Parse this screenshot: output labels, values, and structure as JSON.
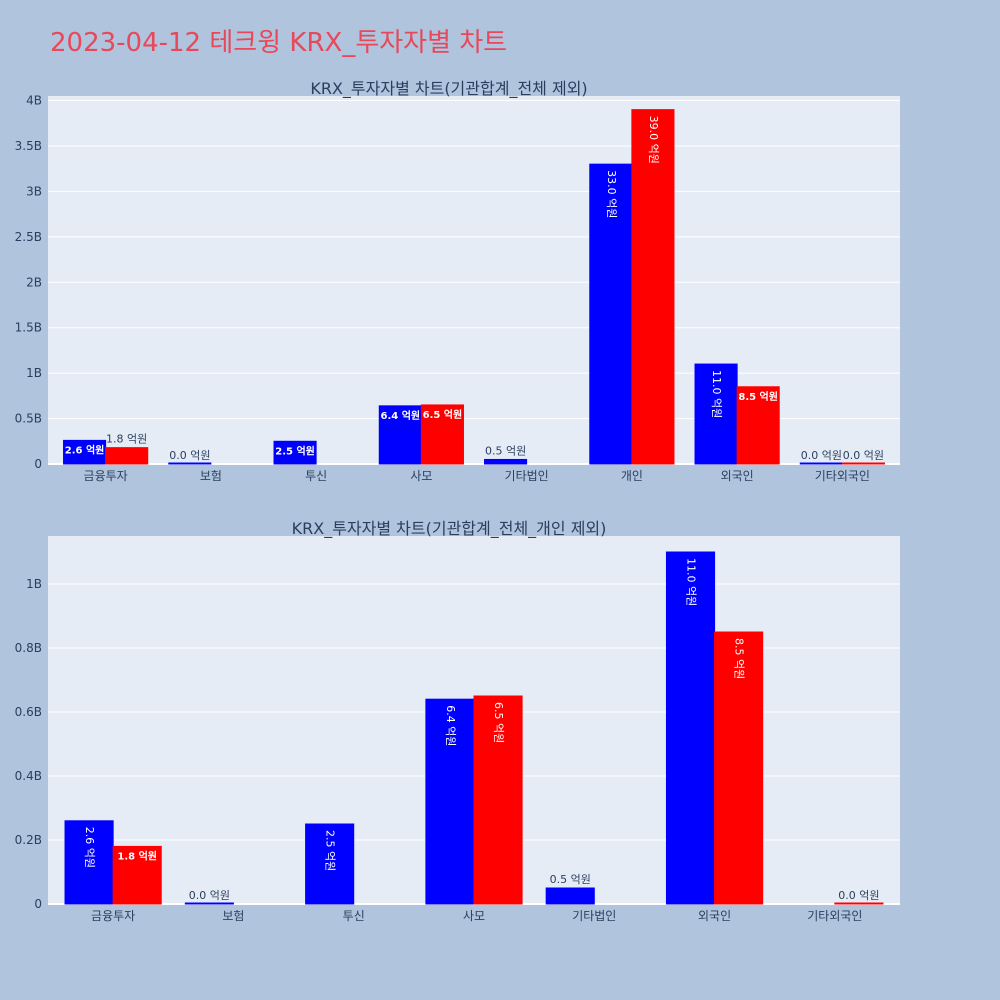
{
  "page": {
    "title": "2023-04-12 테크윙 KRX_투자자별 차트"
  },
  "colors": {
    "buy": "#0000ff",
    "sell": "#ff0000",
    "plot_bg": "#e5ecf6",
    "paper_bg": "#b0c4de",
    "title": "#e8485a"
  },
  "chart_data": [
    {
      "type": "bar",
      "title": "KRX_투자자별 차트(기관합계_전체 제외)",
      "categories": [
        "금융투자",
        "보험",
        "투신",
        "사모",
        "기타법인",
        "개인",
        "외국인",
        "기타외국인"
      ],
      "series": [
        {
          "values": [
            260000000,
            0,
            250000000,
            640000000,
            50000000,
            3300000000,
            1100000000,
            0
          ],
          "labels": [
            "2.6 억원",
            "0.0 억원",
            "2.5 억원",
            "6.4 억원",
            "0.5 억원",
            "33.0 억원",
            "11.0 억원",
            "0.0 억원"
          ]
        },
        {
          "values": [
            180000000,
            null,
            null,
            650000000,
            null,
            3900000000,
            850000000,
            0
          ],
          "labels": [
            "1.8 억원",
            "",
            "",
            "6.5 억원",
            "",
            "39.0 억원",
            "8.5 억원",
            "0.0 억원"
          ]
        }
      ],
      "ylim": [
        0,
        4050000000
      ],
      "yticks": [
        0,
        500000000,
        1000000000,
        1500000000,
        2000000000,
        2500000000,
        3000000000,
        3500000000,
        4000000000
      ],
      "ytick_labels": [
        "0",
        "0.5B",
        "1B",
        "1.5B",
        "2B",
        "2.5B",
        "3B",
        "3.5B",
        "4B"
      ],
      "grid": true
    },
    {
      "type": "bar",
      "title": "KRX_투자자별 차트(기관합계_전체_개인 제외)",
      "categories": [
        "금융투자",
        "보험",
        "투신",
        "사모",
        "기타법인",
        "외국인",
        "기타외국인"
      ],
      "series": [
        {
          "values": [
            260000000,
            0,
            250000000,
            640000000,
            50000000,
            1100000000,
            null
          ],
          "labels": [
            "2.6 억원",
            "0.0 억원",
            "2.5 억원",
            "6.4 억원",
            "0.5 억원",
            "11.0 억원",
            ""
          ]
        },
        {
          "values": [
            180000000,
            null,
            null,
            650000000,
            null,
            850000000,
            0
          ],
          "labels": [
            "1.8 억원",
            "",
            "",
            "6.5 억원",
            "",
            "8.5 억원",
            "0.0 억원"
          ]
        }
      ],
      "ylim": [
        0,
        1150000000
      ],
      "yticks": [
        0,
        200000000,
        400000000,
        600000000,
        800000000,
        1000000000
      ],
      "ytick_labels": [
        "0",
        "0.2B",
        "0.4B",
        "0.6B",
        "0.8B",
        "1B"
      ],
      "grid": true
    }
  ]
}
